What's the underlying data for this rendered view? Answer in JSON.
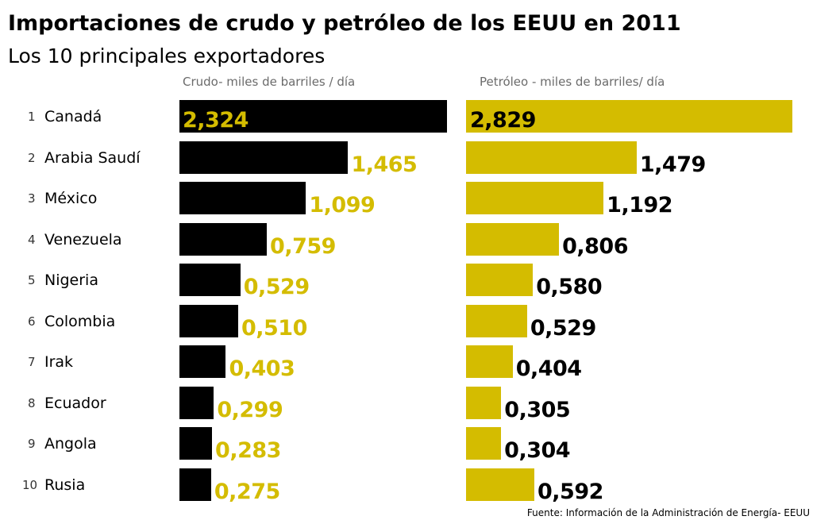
{
  "title": "Importaciones de crudo y petróleo de los EEUU en 2011",
  "subtitle": "Los 10 principales exportadores",
  "source": "Fuente: Información de la Administración de Energía- EEUU",
  "colors": {
    "crudo": "#000000",
    "petroleo": "#d4bc00"
  },
  "chart_data": {
    "type": "bar",
    "orientation": "horizontal",
    "categories": [
      "Canadá",
      "Arabia Saudí",
      "México",
      "Venezuela",
      "Nigeria",
      "Colombia",
      "Irak",
      "Ecuador",
      "Angola",
      "Rusia"
    ],
    "ranks": [
      "1",
      "2",
      "3",
      "4",
      "5",
      "6",
      "7",
      "8",
      "9",
      "10"
    ],
    "series": [
      {
        "name": "Crudo- miles de barriles / día",
        "values": [
          2.324,
          1.465,
          1.099,
          0.759,
          0.529,
          0.51,
          0.403,
          0.299,
          0.283,
          0.275
        ],
        "labels": [
          "2,324",
          "1,465",
          "1,099",
          "0,759",
          "0,529",
          "0,510",
          "0,403",
          "0,299",
          "0,283",
          "0,275"
        ]
      },
      {
        "name": "Petróleo - miles de barriles/ día",
        "values": [
          2.829,
          1.479,
          1.192,
          0.806,
          0.58,
          0.529,
          0.404,
          0.305,
          0.304,
          0.592
        ],
        "labels": [
          "2,829",
          "1,479",
          "1,192",
          "0,806",
          "0,580",
          "0,529",
          "0,404",
          "0,305",
          "0,304",
          "0,592"
        ]
      }
    ]
  }
}
